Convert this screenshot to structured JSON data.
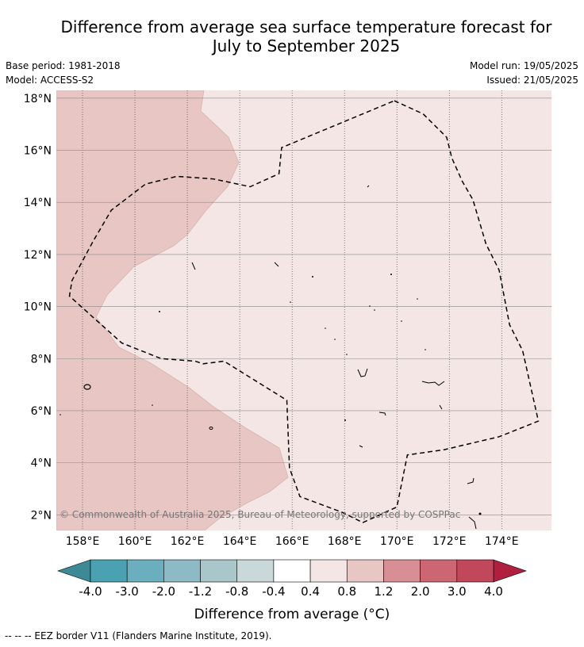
{
  "header": {
    "title_line1": "Difference from average sea surface temperature forecast for",
    "title_line2": "July to September 2025",
    "base_period": "Base period: 1981-2018",
    "model": "Model: ACCESS-S2",
    "model_run": "Model run: 19/05/2025",
    "issued": "Issued: 21/05/2025"
  },
  "map": {
    "copyright": "© Commonwealth of Australia 2025, Bureau of Meteorology, supported by COSPPac"
  },
  "footnote": "--  --  -- EEZ border V11 (Flanders Marine Institute, 2019).",
  "chart_data": {
    "type": "heatmap",
    "title": "Difference from average sea surface temperature forecast for July to September 2025",
    "xlabel": "",
    "ylabel": "",
    "xlim": [
      157,
      175.9
    ],
    "ylim": [
      1.4,
      18.3
    ],
    "x_ticks": [
      158,
      160,
      162,
      164,
      166,
      168,
      170,
      172,
      174
    ],
    "x_tick_labels": [
      "158°E",
      "160°E",
      "162°E",
      "164°E",
      "166°E",
      "168°E",
      "170°E",
      "172°E",
      "174°E"
    ],
    "y_ticks": [
      2,
      4,
      6,
      8,
      10,
      12,
      14,
      16,
      18
    ],
    "y_tick_labels": [
      "2°N",
      "4°N",
      "6°N",
      "8°N",
      "10°N",
      "12°N",
      "14°N",
      "16°N",
      "18°N"
    ],
    "grid": true,
    "regions": [
      {
        "category": "0.4 to 0.8",
        "color": "#f3e6e5",
        "area": "most of the map"
      },
      {
        "category": "0.8 to 1.2",
        "color": "#e7c6c3",
        "area": "western part"
      }
    ],
    "colorbar": {
      "label": "Difference from average (°C)",
      "boundaries": [
        "-4.0",
        "-3.0",
        "-2.0",
        "-1.2",
        "-0.8",
        "-0.4",
        "0.4",
        "0.8",
        "1.2",
        "2.0",
        "3.0",
        "4.0"
      ],
      "colors": [
        "#4aa1b2",
        "#6bafbf",
        "#8ebac5",
        "#a9c6ca",
        "#c9d9da",
        "#ffffff",
        "#f3e6e5",
        "#e7c6c3",
        "#d88e95",
        "#cb6672",
        "#c1475a"
      ],
      "low_extend_color": "#3d8a96",
      "high_extend_color": "#b11f3e"
    },
    "eez_border": [
      [
        169.9,
        17.9
      ],
      [
        171.0,
        17.4
      ],
      [
        171.9,
        16.5
      ],
      [
        172.1,
        15.7
      ],
      [
        172.5,
        14.8
      ],
      [
        172.9,
        14.1
      ],
      [
        173.4,
        12.4
      ],
      [
        173.9,
        11.4
      ],
      [
        174.3,
        9.3
      ],
      [
        174.8,
        8.3
      ],
      [
        175.4,
        5.6
      ],
      [
        173.9,
        5.0
      ],
      [
        171.8,
        4.5
      ],
      [
        170.4,
        4.3
      ],
      [
        170.0,
        2.3
      ],
      [
        168.7,
        1.7
      ],
      [
        167.9,
        2.1
      ],
      [
        166.3,
        2.7
      ],
      [
        165.9,
        3.8
      ],
      [
        165.8,
        6.4
      ],
      [
        163.4,
        7.9
      ],
      [
        162.6,
        7.8
      ],
      [
        162.3,
        7.9
      ],
      [
        161.0,
        8.0
      ],
      [
        159.5,
        8.6
      ],
      [
        157.5,
        10.4
      ],
      [
        157.6,
        11.0
      ],
      [
        158.4,
        12.5
      ],
      [
        159.1,
        13.7
      ],
      [
        160.4,
        14.7
      ],
      [
        161.6,
        15.0
      ],
      [
        163.0,
        14.9
      ],
      [
        164.4,
        14.6
      ],
      [
        165.5,
        15.1
      ],
      [
        165.6,
        16.1
      ]
    ]
  }
}
